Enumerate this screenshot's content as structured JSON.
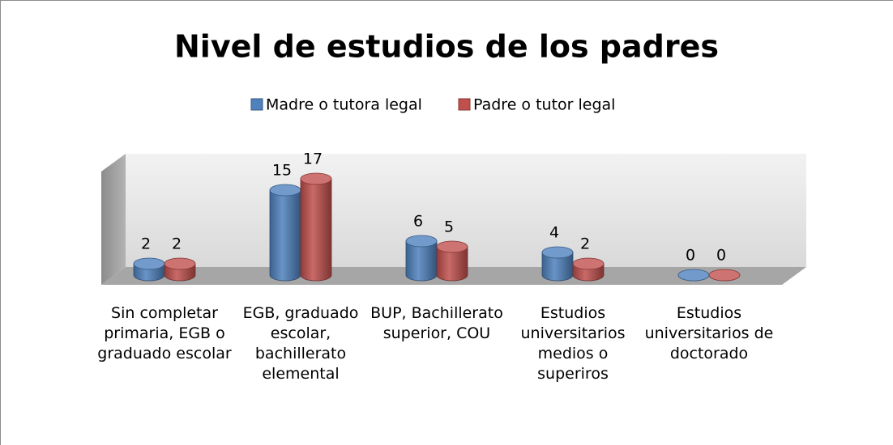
{
  "chart_data": {
    "type": "bar3d",
    "title": "Nivel de estudios de los padres",
    "categories": [
      "Sin completar primaria, EGB o graduado escolar",
      "EGB, graduado escolar, bachillerato elemental",
      "BUP, Bachillerato superior, COU",
      "Estudios universitarios medios o superiros",
      "Estudios universitarios de doctorado"
    ],
    "series": [
      {
        "name": "Madre o tutora legal",
        "color": "#4f81bd",
        "values": [
          2,
          15,
          6,
          4,
          0
        ]
      },
      {
        "name": "Padre o tutor legal",
        "color": "#c0504d",
        "values": [
          2,
          17,
          5,
          2,
          0
        ]
      }
    ],
    "legend": "top"
  }
}
